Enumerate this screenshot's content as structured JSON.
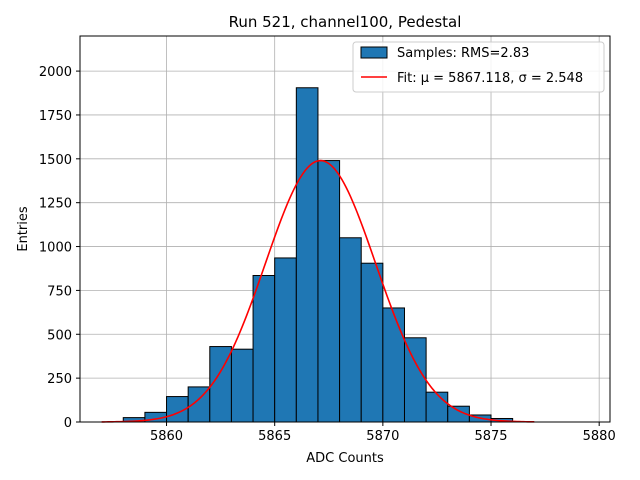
{
  "chart_data": {
    "type": "bar",
    "title": "Run 521, channel100, Pedestal",
    "xlabel": "ADC Counts",
    "ylabel": "Entries",
    "xlim": [
      5856,
      5880.5
    ],
    "ylim": [
      0,
      2200
    ],
    "x_ticks": [
      5860,
      5865,
      5870,
      5875,
      5880
    ],
    "y_ticks": [
      0,
      250,
      500,
      750,
      1000,
      1250,
      1500,
      1750,
      2000
    ],
    "grid": true,
    "legend_position": "top-right",
    "bin_width": 1,
    "bins": {
      "left_edges": [
        5858,
        5859,
        5860,
        5861,
        5862,
        5863,
        5864,
        5865,
        5866,
        5867,
        5868,
        5869,
        5870,
        5871,
        5872,
        5873,
        5874,
        5875
      ],
      "counts": [
        25,
        55,
        145,
        200,
        430,
        415,
        835,
        935,
        1905,
        1490,
        1050,
        905,
        650,
        480,
        170,
        90,
        40,
        20
      ]
    },
    "fit": {
      "mu": 5867.118,
      "sigma": 2.548,
      "amplitude": 1490,
      "x_range": [
        5857,
        5877
      ]
    },
    "series": [
      {
        "name": "Samples: RMS=2.83",
        "type": "histogram",
        "color": "#1f77b4"
      },
      {
        "name": "Fit: μ = 5867.118, σ = 2.548",
        "type": "line",
        "color": "#ff0000"
      }
    ]
  }
}
